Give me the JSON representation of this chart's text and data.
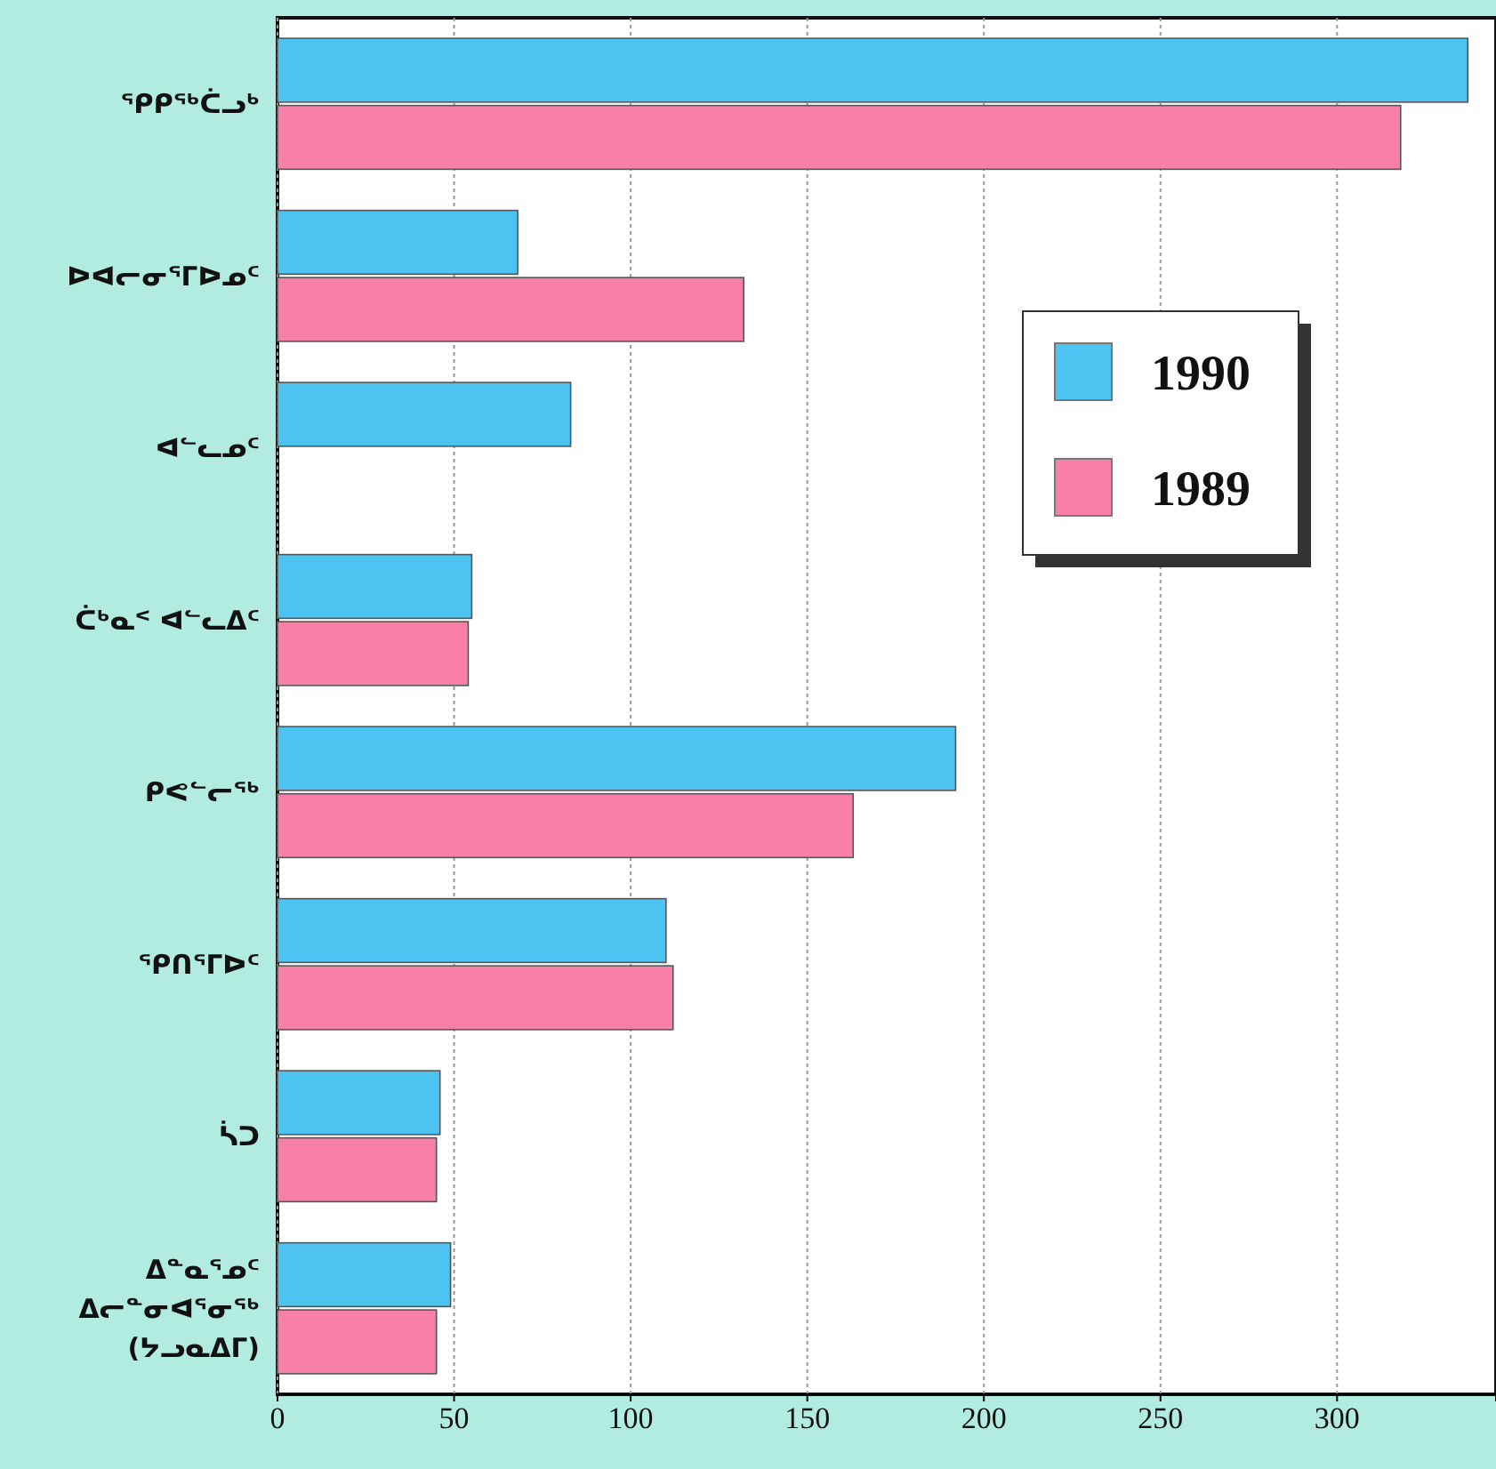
{
  "chart_data": {
    "type": "bar",
    "orientation": "horizontal",
    "categories": [
      "ᕐᑭᑭᖅᑖᓗᒃ",
      "ᐅᐊᓕᓂᕐᒥᐅᓄᑦ",
      "ᐊᓪᓚᓄᑦ",
      "ᑖᒃᓇᑉ ᐊᓪᓚᐃᑦ",
      "ᑭᕙᓪᓕᖅ",
      "ᕐᑭᑎᕐᒥᐅᑦ",
      "ᓵᑐ",
      "ᐃᓐᓇᕐᓄᑦ\nᐃᓕᓐᓂᐊᕐᓂᖅ\n(ᔭᓗᓇᐃᒥ)"
    ],
    "series": [
      {
        "name": "1990",
        "color": "#4cc3f0",
        "values": [
          337,
          68,
          83,
          55,
          192,
          110,
          46,
          49
        ]
      },
      {
        "name": "1989",
        "color": "#f77fa8",
        "values": [
          318,
          132,
          null,
          54,
          163,
          112,
          45,
          45
        ]
      }
    ],
    "xlim": [
      0,
      345
    ],
    "xticks": [
      0,
      50,
      100,
      150,
      200,
      250,
      300
    ],
    "grid": "x",
    "legend": "right"
  }
}
